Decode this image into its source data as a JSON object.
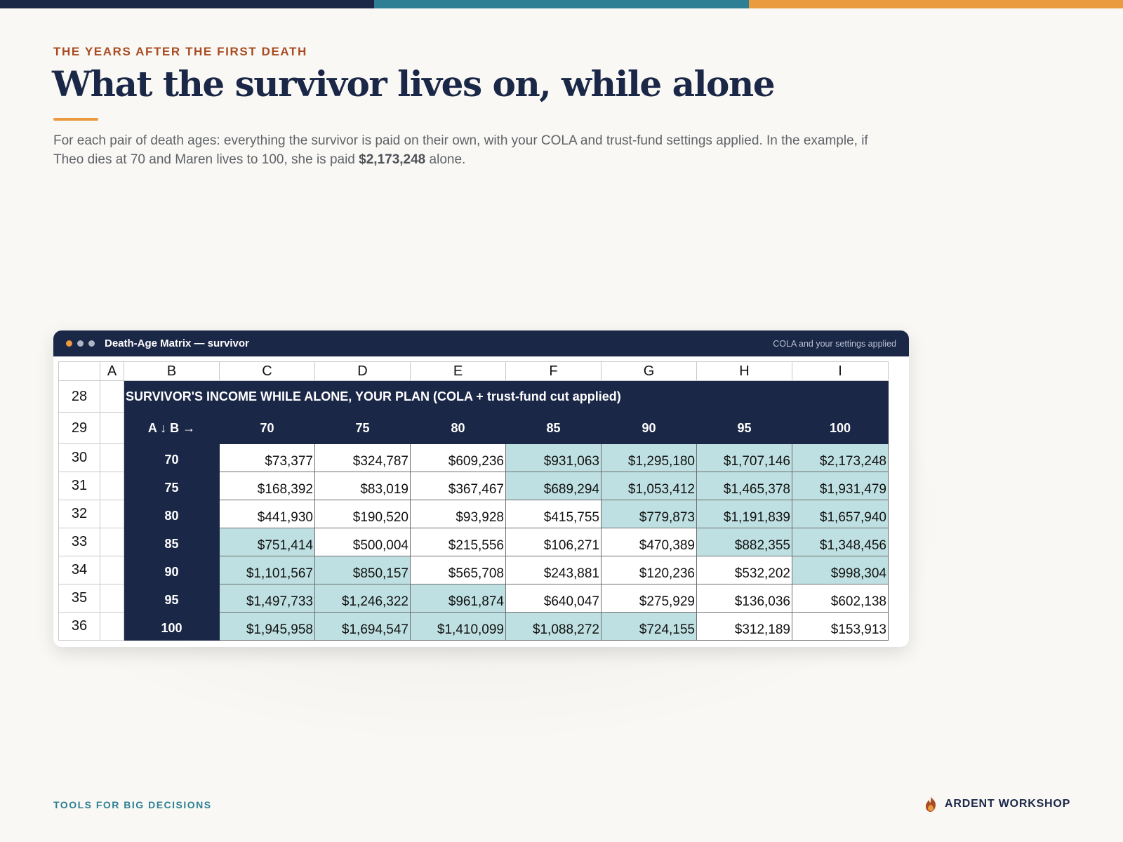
{
  "header": {
    "eyebrow": "THE YEARS AFTER THE FIRST DEATH",
    "title": "What the survivor lives on, while alone",
    "description_pre": "For each pair of death ages: everything the survivor is paid on their own, with your COLA and trust-fund settings applied. In the example, if Theo dies at 70 and Maren lives to 100, she is paid ",
    "description_bold": "$2,173,248",
    "description_post": " alone."
  },
  "window": {
    "title": "Death-Age Matrix — survivor",
    "subtitle": "COLA and your settings applied"
  },
  "sheet": {
    "column_letters": [
      "A",
      "B",
      "C",
      "D",
      "E",
      "F",
      "G",
      "H",
      "I"
    ],
    "banner_row": "28",
    "banner": "SURVIVOR'S INCOME WHILE ALONE, YOUR PLAN (COLA + trust-fund cut applied)",
    "header_row": "29",
    "corner_label": "A ↓  B →",
    "col_ages": [
      "70",
      "75",
      "80",
      "85",
      "90",
      "95",
      "100"
    ],
    "rows": [
      {
        "num": "30",
        "age": "70",
        "cells": [
          "$73,377",
          "$324,787",
          "$609,236",
          "$931,063",
          "$1,295,180",
          "$1,707,146",
          "$2,173,248"
        ]
      },
      {
        "num": "31",
        "age": "75",
        "cells": [
          "$168,392",
          "$83,019",
          "$367,467",
          "$689,294",
          "$1,053,412",
          "$1,465,378",
          "$1,931,479"
        ]
      },
      {
        "num": "32",
        "age": "80",
        "cells": [
          "$441,930",
          "$190,520",
          "$93,928",
          "$415,755",
          "$779,873",
          "$1,191,839",
          "$1,657,940"
        ]
      },
      {
        "num": "33",
        "age": "85",
        "cells": [
          "$751,414",
          "$500,004",
          "$215,556",
          "$106,271",
          "$470,389",
          "$882,355",
          "$1,348,456"
        ]
      },
      {
        "num": "34",
        "age": "90",
        "cells": [
          "$1,101,567",
          "$850,157",
          "$565,708",
          "$243,881",
          "$120,236",
          "$532,202",
          "$998,304"
        ]
      },
      {
        "num": "35",
        "age": "95",
        "cells": [
          "$1,497,733",
          "$1,246,322",
          "$961,874",
          "$640,047",
          "$275,929",
          "$136,036",
          "$602,138"
        ]
      },
      {
        "num": "36",
        "age": "100",
        "cells": [
          "$1,945,958",
          "$1,694,547",
          "$1,410,099",
          "$1,088,272",
          "$724,155",
          "$312,189",
          "$153,913"
        ]
      }
    ],
    "highlight": [
      [
        false,
        false,
        false,
        true,
        true,
        true,
        true
      ],
      [
        false,
        false,
        false,
        true,
        true,
        true,
        true
      ],
      [
        false,
        false,
        false,
        false,
        true,
        true,
        true
      ],
      [
        true,
        false,
        false,
        false,
        false,
        true,
        true
      ],
      [
        true,
        true,
        false,
        false,
        false,
        false,
        true
      ],
      [
        true,
        true,
        true,
        false,
        false,
        false,
        false
      ],
      [
        true,
        true,
        true,
        true,
        true,
        false,
        false
      ]
    ],
    "colors": {
      "header_navy": "#1b2747",
      "highlight_teal": "#bfe0e2"
    }
  },
  "footer": {
    "left": "TOOLS FOR BIG DECISIONS",
    "brand": "ARDENT WORKSHOP",
    "brand_icon": "flame-icon"
  }
}
